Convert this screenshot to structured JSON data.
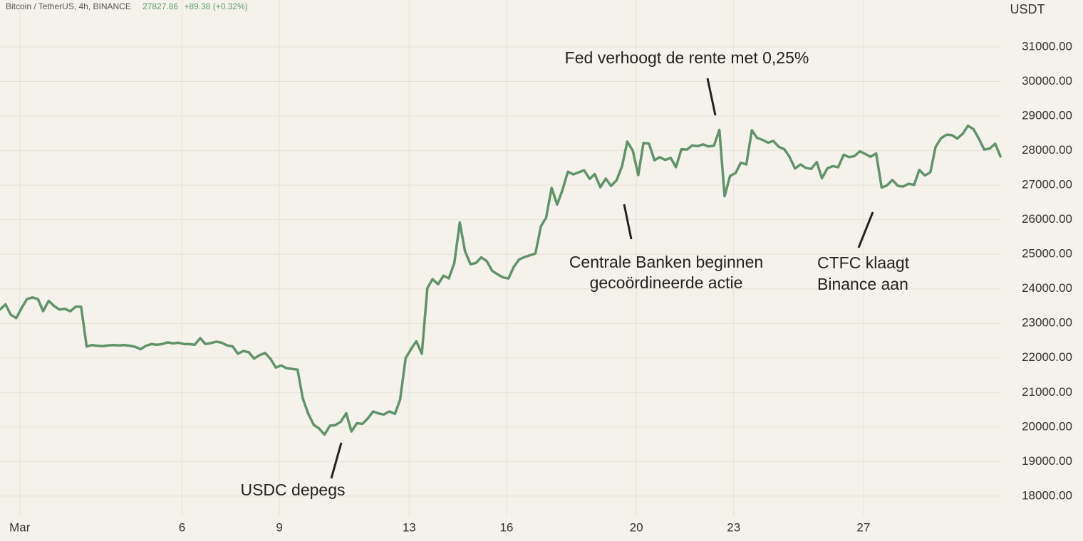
{
  "chart_data": {
    "type": "line",
    "header": {
      "symbol": "Bitcoin / TetherUS, 4h, BINANCE",
      "price": "27827.86",
      "change": "+89.38 (+0.32%)"
    },
    "y_axis_label": "USDT",
    "color": "#5f9468",
    "grid": true,
    "xlim": [
      0.39,
      31.24
    ],
    "xticks": [
      {
        "value": 1,
        "label": "Mar"
      },
      6,
      9,
      13,
      16,
      20,
      23,
      27
    ],
    "ylim": [
      17420,
      32360
    ],
    "yticks": [
      {
        "value": 18000,
        "label": "18000.00"
      },
      {
        "value": 19000,
        "label": "19000.00"
      },
      {
        "value": 20000,
        "label": "20000.00"
      },
      {
        "value": 21000,
        "label": "21000.00"
      },
      {
        "value": 22000,
        "label": "22000.00"
      },
      {
        "value": 23000,
        "label": "23000.00"
      },
      {
        "value": 24000,
        "label": "24000.00"
      },
      {
        "value": 25000,
        "label": "25000.00"
      },
      {
        "value": 26000,
        "label": "26000.00"
      },
      {
        "value": 27000,
        "label": "27000.00"
      },
      {
        "value": 28000,
        "label": "28000.00"
      },
      {
        "value": 29000,
        "label": "29000.00"
      },
      {
        "value": 30000,
        "label": "30000.00"
      },
      {
        "value": 31000,
        "label": "31000.00"
      }
    ],
    "annotations": [
      {
        "lines": [
          "Fed verhoogt de rente met 0,25%"
        ]
      },
      {
        "lines": [
          "Centrale Banken beginnen",
          "gecoördineerde actie"
        ]
      },
      {
        "lines": [
          "USDC depegs"
        ]
      },
      {
        "lines": [
          "CTFC klaagt",
          "Binance aan"
        ]
      }
    ],
    "x": [
      0.39,
      0.56,
      0.72,
      0.89,
      1.06,
      1.22,
      1.39,
      1.56,
      1.72,
      1.89,
      2.06,
      2.22,
      2.39,
      2.56,
      2.72,
      2.89,
      3.06,
      3.22,
      3.39,
      3.56,
      3.72,
      3.89,
      4.06,
      4.22,
      4.39,
      4.56,
      4.72,
      4.89,
      5.06,
      5.22,
      5.39,
      5.56,
      5.72,
      5.89,
      6.06,
      6.22,
      6.39,
      6.56,
      6.72,
      6.89,
      7.06,
      7.22,
      7.39,
      7.56,
      7.72,
      7.89,
      8.06,
      8.22,
      8.39,
      8.56,
      8.72,
      8.89,
      9.06,
      9.22,
      9.39,
      9.56,
      9.72,
      9.89,
      10.06,
      10.22,
      10.39,
      10.56,
      10.72,
      10.89,
      11.06,
      11.22,
      11.39,
      11.56,
      11.72,
      11.89,
      12.06,
      12.22,
      12.39,
      12.56,
      12.72,
      12.89,
      13.06,
      13.22,
      13.39,
      13.56,
      13.72,
      13.89,
      14.06,
      14.22,
      14.39,
      14.56,
      14.72,
      14.89,
      15.06,
      15.22,
      15.39,
      15.56,
      15.72,
      15.89,
      16.06,
      16.22,
      16.39,
      16.56,
      16.72,
      16.89,
      17.06,
      17.22,
      17.39,
      17.56,
      17.72,
      17.89,
      18.06,
      18.22,
      18.39,
      18.56,
      18.72,
      18.89,
      19.06,
      19.22,
      19.39,
      19.56,
      19.72,
      19.89,
      20.06,
      20.22,
      20.39,
      20.56,
      20.72,
      20.89,
      21.06,
      21.22,
      21.39,
      21.56,
      21.72,
      21.89,
      22.06,
      22.22,
      22.39,
      22.56,
      22.72,
      22.89,
      23.06,
      23.22,
      23.39,
      23.56,
      23.72,
      23.89,
      24.06,
      24.22,
      24.39,
      24.56,
      24.72,
      24.89,
      25.06,
      25.22,
      25.39,
      25.56,
      25.72,
      25.89,
      26.06,
      26.22,
      26.39,
      26.56,
      26.72,
      26.89,
      27.06,
      27.22,
      27.39,
      27.56,
      27.72,
      27.89,
      28.06,
      28.22,
      28.39,
      28.56,
      28.72,
      28.89,
      29.06,
      29.22,
      29.39,
      29.56,
      29.72,
      29.89,
      30.06,
      30.22,
      30.39,
      30.56,
      30.72,
      30.89,
      31.06,
      31.22
    ],
    "values": [
      23400,
      23550,
      23250,
      23150,
      23450,
      23700,
      23750,
      23700,
      23350,
      23650,
      23500,
      23400,
      23420,
      23350,
      23480,
      23480,
      22330,
      22370,
      22350,
      22340,
      22360,
      22370,
      22360,
      22370,
      22350,
      22320,
      22250,
      22350,
      22400,
      22380,
      22400,
      22450,
      22420,
      22440,
      22400,
      22400,
      22380,
      22570,
      22400,
      22430,
      22470,
      22440,
      22360,
      22330,
      22120,
      22200,
      22160,
      21980,
      22080,
      22140,
      21980,
      21720,
      21780,
      21700,
      21680,
      21660,
      20830,
      20380,
      20060,
      19960,
      19780,
      20040,
      20050,
      20150,
      20400,
      19870,
      20110,
      20090,
      20240,
      20450,
      20390,
      20360,
      20450,
      20380,
      20790,
      21990,
      22260,
      22480,
      22120,
      24020,
      24280,
      24130,
      24380,
      24300,
      24740,
      25920,
      25090,
      24710,
      24750,
      24910,
      24800,
      24520,
      24420,
      24330,
      24300,
      24630,
      24850,
      24920,
      24970,
      25020,
      25810,
      26060,
      26920,
      26440,
      26850,
      27390,
      27310,
      27370,
      27430,
      27180,
      27320,
      26940,
      27190,
      26980,
      27140,
      27550,
      28260,
      28000,
      27290,
      28220,
      28200,
      27720,
      27810,
      27730,
      27790,
      27520,
      28040,
      28030,
      28150,
      28130,
      28180,
      28120,
      28140,
      28600,
      26680,
      27270,
      27350,
      27650,
      27600,
      28590,
      28370,
      28310,
      28230,
      28280,
      28110,
      28040,
      27820,
      27480,
      27600,
      27500,
      27470,
      27670,
      27200,
      27490,
      27550,
      27520,
      27880,
      27810,
      27840,
      27980,
      27900,
      27820,
      27920,
      26930,
      26990,
      27150,
      26980,
      26960,
      27040,
      27010,
      27440,
      27280,
      27370,
      28100,
      28360,
      28460,
      28450,
      28350,
      28490,
      28720,
      28620,
      28340,
      28030,
      28060,
      28200,
      27830
    ]
  }
}
